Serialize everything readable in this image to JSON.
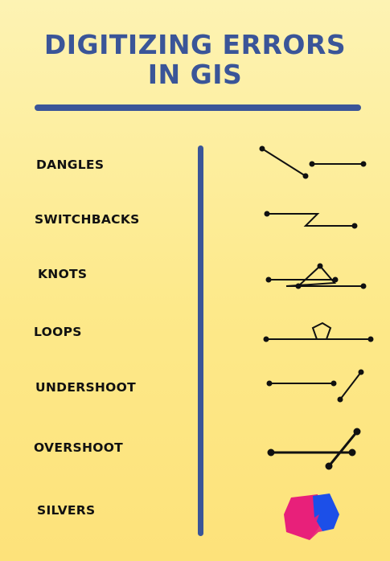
{
  "title": {
    "line1": "DIGITIZING ERRORS",
    "line2": "IN GIS"
  },
  "items": [
    {
      "label": "DANGLES",
      "icon": "dangles-icon"
    },
    {
      "label": "SWITCHBACKS",
      "icon": "switchbacks-icon"
    },
    {
      "label": "KNOTS",
      "icon": "knots-icon"
    },
    {
      "label": "LOOPS",
      "icon": "loops-icon"
    },
    {
      "label": "UNDERSHOOT",
      "icon": "undershoot-icon"
    },
    {
      "label": "OVERSHOOT",
      "icon": "overshoot-icon"
    },
    {
      "label": "SILVERS",
      "icon": "silvers-icon"
    }
  ],
  "colors": {
    "accent": "#3a5598",
    "background": "#fdeb8f",
    "silver_pink": "#e8207a",
    "silver_blue": "#1c4fe8"
  }
}
